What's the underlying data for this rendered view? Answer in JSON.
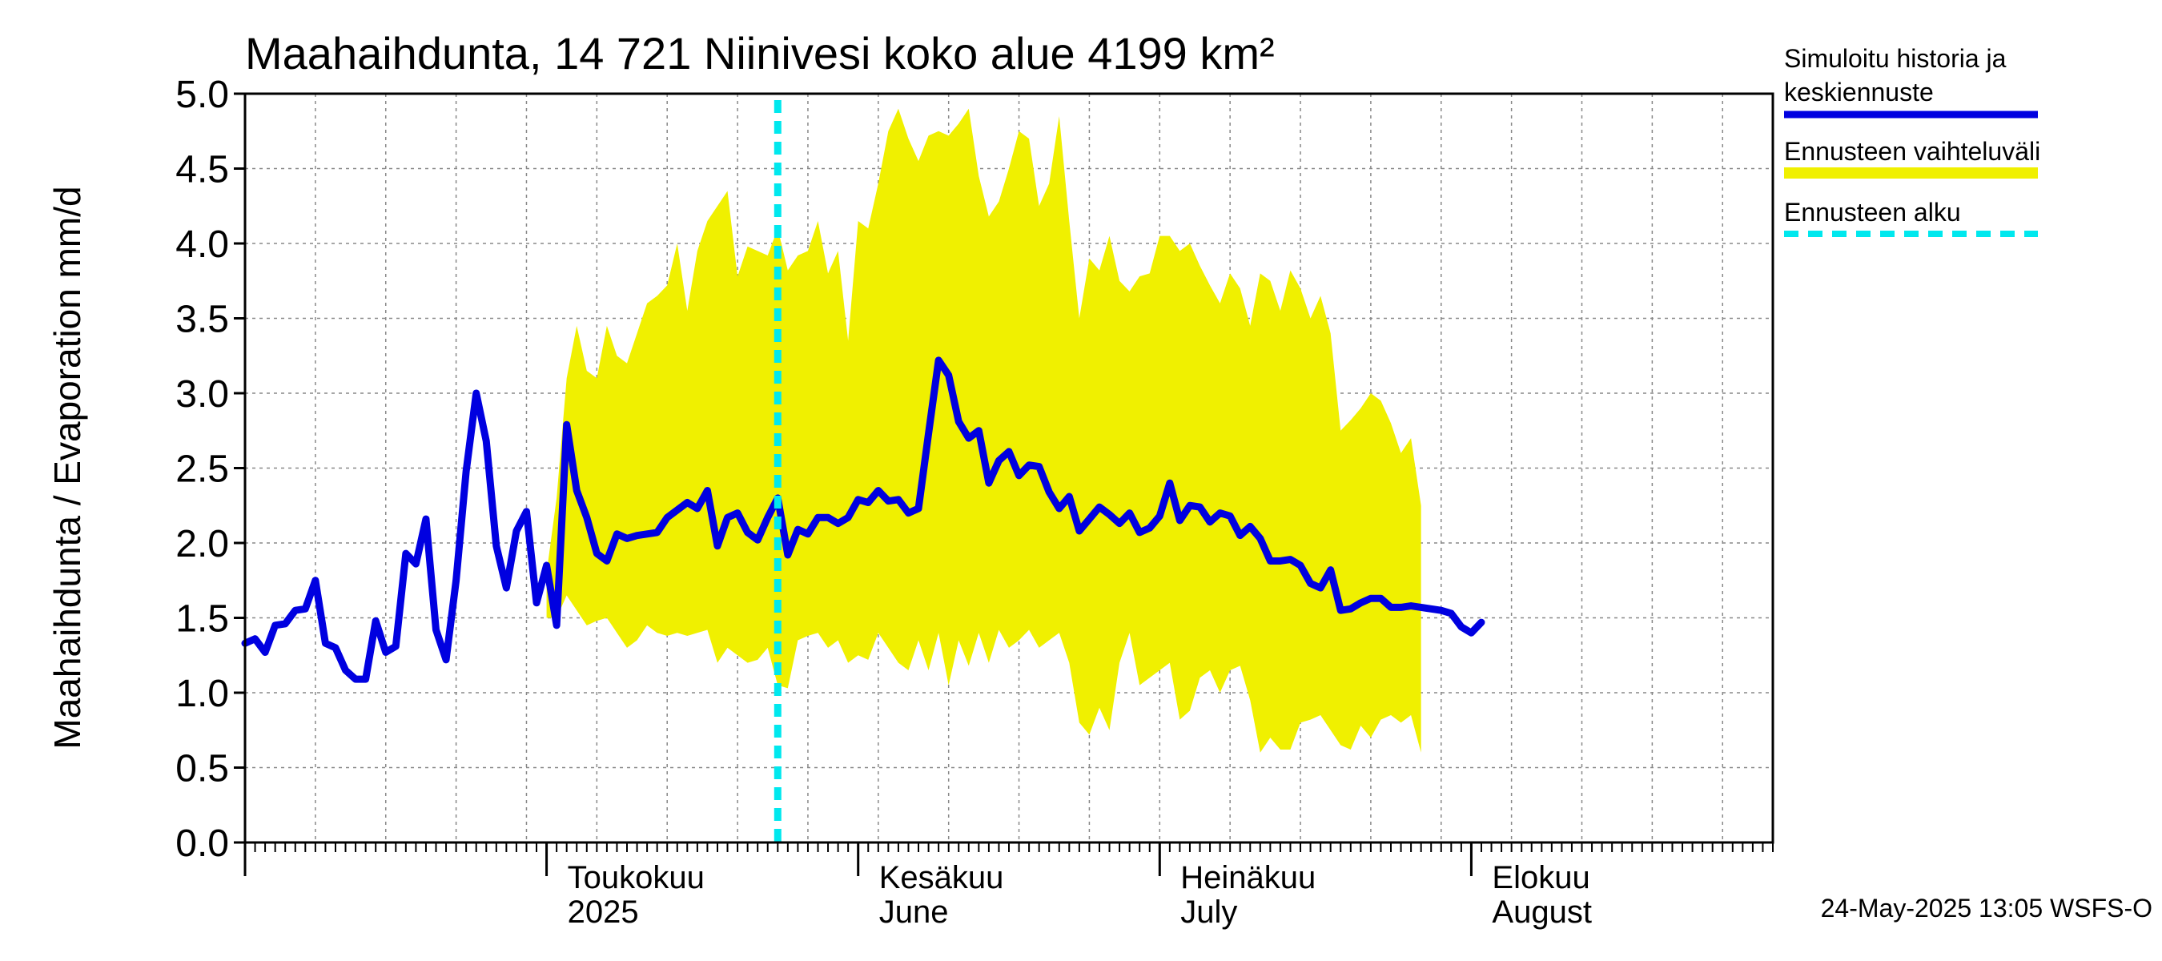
{
  "chart_data": {
    "type": "line",
    "title": "Maahaihdunta, 14 721 Niinivesi koko alue 4199 km²",
    "ylabel": "Maahaihdunta / Evaporation   mm/d",
    "ylim": [
      0,
      5
    ],
    "xlim": [
      "2025-04-01",
      "2025-08-31"
    ],
    "yticks": [
      "0.0",
      "0.5",
      "1.0",
      "1.5",
      "2.0",
      "2.5",
      "3.0",
      "3.5",
      "4.0",
      "4.5",
      "5.0"
    ],
    "month_labels": [
      {
        "line1": "Toukokuu",
        "line2": "2025"
      },
      {
        "line1": "Kesäkuu",
        "line2": "June"
      },
      {
        "line1": "Heinäkuu",
        "line2": "July"
      },
      {
        "line1": "Elokuu",
        "line2": "August"
      }
    ],
    "grid": true,
    "legend_position": "right",
    "forecast_start": "2025-05-24",
    "series": [
      {
        "name": "Simuloitu historia ja keskiennuste",
        "color": "#0000e0",
        "points": [
          [
            "2025-04-01",
            1.33
          ],
          [
            "2025-04-02",
            1.36
          ],
          [
            "2025-04-03",
            1.27
          ],
          [
            "2025-04-04",
            1.45
          ],
          [
            "2025-04-05",
            1.46
          ],
          [
            "2025-04-06",
            1.55
          ],
          [
            "2025-04-07",
            1.56
          ],
          [
            "2025-04-08",
            1.75
          ],
          [
            "2025-04-09",
            1.33
          ],
          [
            "2025-04-10",
            1.3
          ],
          [
            "2025-04-11",
            1.15
          ],
          [
            "2025-04-12",
            1.09
          ],
          [
            "2025-04-13",
            1.09
          ],
          [
            "2025-04-14",
            1.48
          ],
          [
            "2025-04-15",
            1.27
          ],
          [
            "2025-04-16",
            1.31
          ],
          [
            "2025-04-17",
            1.93
          ],
          [
            "2025-04-18",
            1.86
          ],
          [
            "2025-04-19",
            2.16
          ],
          [
            "2025-04-20",
            1.42
          ],
          [
            "2025-04-21",
            1.22
          ],
          [
            "2025-04-22",
            1.75
          ],
          [
            "2025-04-23",
            2.48
          ],
          [
            "2025-04-24",
            3.0
          ],
          [
            "2025-04-25",
            2.68
          ],
          [
            "2025-04-26",
            1.98
          ],
          [
            "2025-04-27",
            1.7
          ],
          [
            "2025-04-28",
            2.08
          ],
          [
            "2025-04-29",
            2.21
          ],
          [
            "2025-04-30",
            1.6
          ],
          [
            "2025-05-01",
            1.85
          ],
          [
            "2025-05-02",
            1.45
          ],
          [
            "2025-05-03",
            2.79
          ],
          [
            "2025-05-04",
            2.35
          ],
          [
            "2025-05-05",
            2.17
          ],
          [
            "2025-05-06",
            1.93
          ],
          [
            "2025-05-07",
            1.88
          ],
          [
            "2025-05-08",
            2.06
          ],
          [
            "2025-05-09",
            2.03
          ],
          [
            "2025-05-10",
            2.05
          ],
          [
            "2025-05-11",
            2.06
          ],
          [
            "2025-05-12",
            2.07
          ],
          [
            "2025-05-13",
            2.17
          ],
          [
            "2025-05-14",
            2.22
          ],
          [
            "2025-05-15",
            2.27
          ],
          [
            "2025-05-16",
            2.23
          ],
          [
            "2025-05-17",
            2.35
          ],
          [
            "2025-05-18",
            1.98
          ],
          [
            "2025-05-19",
            2.17
          ],
          [
            "2025-05-20",
            2.2
          ],
          [
            "2025-05-21",
            2.07
          ],
          [
            "2025-05-22",
            2.02
          ],
          [
            "2025-05-23",
            2.17
          ],
          [
            "2025-05-24",
            2.3
          ],
          [
            "2025-05-25",
            1.92
          ],
          [
            "2025-05-26",
            2.09
          ],
          [
            "2025-05-27",
            2.06
          ],
          [
            "2025-05-28",
            2.17
          ],
          [
            "2025-05-29",
            2.17
          ],
          [
            "2025-05-30",
            2.13
          ],
          [
            "2025-05-31",
            2.17
          ],
          [
            "2025-06-01",
            2.29
          ],
          [
            "2025-06-02",
            2.27
          ],
          [
            "2025-06-03",
            2.35
          ],
          [
            "2025-06-04",
            2.28
          ],
          [
            "2025-06-05",
            2.29
          ],
          [
            "2025-06-06",
            2.2
          ],
          [
            "2025-06-07",
            2.23
          ],
          [
            "2025-06-08",
            2.73
          ],
          [
            "2025-06-09",
            3.22
          ],
          [
            "2025-06-10",
            3.12
          ],
          [
            "2025-06-11",
            2.81
          ],
          [
            "2025-06-12",
            2.7
          ],
          [
            "2025-06-13",
            2.75
          ],
          [
            "2025-06-14",
            2.4
          ],
          [
            "2025-06-15",
            2.55
          ],
          [
            "2025-06-16",
            2.61
          ],
          [
            "2025-06-17",
            2.45
          ],
          [
            "2025-06-18",
            2.52
          ],
          [
            "2025-06-19",
            2.51
          ],
          [
            "2025-06-20",
            2.34
          ],
          [
            "2025-06-21",
            2.23
          ],
          [
            "2025-06-22",
            2.31
          ],
          [
            "2025-06-23",
            2.08
          ],
          [
            "2025-06-24",
            2.16
          ],
          [
            "2025-06-25",
            2.24
          ],
          [
            "2025-06-26",
            2.19
          ],
          [
            "2025-06-27",
            2.13
          ],
          [
            "2025-06-28",
            2.2
          ],
          [
            "2025-06-29",
            2.07
          ],
          [
            "2025-06-30",
            2.1
          ],
          [
            "2025-07-01",
            2.18
          ],
          [
            "2025-07-02",
            2.4
          ],
          [
            "2025-07-03",
            2.15
          ],
          [
            "2025-07-04",
            2.25
          ],
          [
            "2025-07-05",
            2.24
          ],
          [
            "2025-07-06",
            2.14
          ],
          [
            "2025-07-07",
            2.2
          ],
          [
            "2025-07-08",
            2.18
          ],
          [
            "2025-07-09",
            2.05
          ],
          [
            "2025-07-10",
            2.11
          ],
          [
            "2025-07-11",
            2.03
          ],
          [
            "2025-07-12",
            1.88
          ],
          [
            "2025-07-13",
            1.88
          ],
          [
            "2025-07-14",
            1.89
          ],
          [
            "2025-07-15",
            1.85
          ],
          [
            "2025-07-16",
            1.73
          ],
          [
            "2025-07-17",
            1.7
          ],
          [
            "2025-07-18",
            1.82
          ],
          [
            "2025-07-19",
            1.55
          ],
          [
            "2025-07-20",
            1.56
          ],
          [
            "2025-07-21",
            1.6
          ],
          [
            "2025-07-22",
            1.63
          ],
          [
            "2025-07-23",
            1.63
          ],
          [
            "2025-07-24",
            1.57
          ],
          [
            "2025-07-25",
            1.57
          ],
          [
            "2025-07-26",
            1.58
          ],
          [
            "2025-07-27",
            1.57
          ],
          [
            "2025-07-28",
            1.56
          ],
          [
            "2025-07-29",
            1.55
          ],
          [
            "2025-07-30",
            1.53
          ],
          [
            "2025-07-31",
            1.44
          ],
          [
            "2025-08-01",
            1.4
          ],
          [
            "2025-08-02",
            1.47
          ]
        ]
      },
      {
        "name": "Ennusteen vaihteluväli",
        "color": "#f0f000",
        "range": [
          [
            "2025-05-01",
            1.5,
            1.8
          ],
          [
            "2025-05-02",
            1.5,
            2.3
          ],
          [
            "2025-05-03",
            1.65,
            3.1
          ],
          [
            "2025-05-04",
            1.55,
            3.45
          ],
          [
            "2025-05-05",
            1.45,
            3.15
          ],
          [
            "2025-05-06",
            1.48,
            3.1
          ],
          [
            "2025-05-07",
            1.5,
            3.45
          ],
          [
            "2025-05-08",
            1.4,
            3.25
          ],
          [
            "2025-05-09",
            1.3,
            3.2
          ],
          [
            "2025-05-10",
            1.35,
            3.4
          ],
          [
            "2025-05-11",
            1.45,
            3.6
          ],
          [
            "2025-05-12",
            1.4,
            3.65
          ],
          [
            "2025-05-13",
            1.38,
            3.72
          ],
          [
            "2025-05-14",
            1.4,
            4.0
          ],
          [
            "2025-05-15",
            1.38,
            3.55
          ],
          [
            "2025-05-16",
            1.4,
            3.95
          ],
          [
            "2025-05-17",
            1.42,
            4.15
          ],
          [
            "2025-05-18",
            1.2,
            4.25
          ],
          [
            "2025-05-19",
            1.3,
            4.35
          ],
          [
            "2025-05-20",
            1.25,
            3.78
          ],
          [
            "2025-05-21",
            1.2,
            3.98
          ],
          [
            "2025-05-22",
            1.22,
            3.95
          ],
          [
            "2025-05-23",
            1.3,
            3.92
          ],
          [
            "2025-05-24",
            1.05,
            4.1
          ],
          [
            "2025-05-25",
            1.03,
            3.82
          ],
          [
            "2025-05-26",
            1.35,
            3.92
          ],
          [
            "2025-05-27",
            1.38,
            3.95
          ],
          [
            "2025-05-28",
            1.4,
            4.15
          ],
          [
            "2025-05-29",
            1.3,
            3.8
          ],
          [
            "2025-05-30",
            1.35,
            3.95
          ],
          [
            "2025-05-31",
            1.2,
            3.35
          ],
          [
            "2025-06-01",
            1.25,
            4.15
          ],
          [
            "2025-06-02",
            1.22,
            4.1
          ],
          [
            "2025-06-03",
            1.4,
            4.4
          ],
          [
            "2025-06-04",
            1.3,
            4.75
          ],
          [
            "2025-06-05",
            1.2,
            4.9
          ],
          [
            "2025-06-06",
            1.15,
            4.7
          ],
          [
            "2025-06-07",
            1.35,
            4.55
          ],
          [
            "2025-06-08",
            1.15,
            4.72
          ],
          [
            "2025-06-09",
            1.4,
            4.75
          ],
          [
            "2025-06-10",
            1.05,
            4.72
          ],
          [
            "2025-06-11",
            1.35,
            4.8
          ],
          [
            "2025-06-12",
            1.18,
            4.9
          ],
          [
            "2025-06-13",
            1.4,
            4.45
          ],
          [
            "2025-06-14",
            1.2,
            4.18
          ],
          [
            "2025-06-15",
            1.42,
            4.28
          ],
          [
            "2025-06-16",
            1.3,
            4.5
          ],
          [
            "2025-06-17",
            1.35,
            4.75
          ],
          [
            "2025-06-18",
            1.42,
            4.7
          ],
          [
            "2025-06-19",
            1.3,
            4.25
          ],
          [
            "2025-06-20",
            1.35,
            4.4
          ],
          [
            "2025-06-21",
            1.4,
            4.85
          ],
          [
            "2025-06-22",
            1.2,
            4.15
          ],
          [
            "2025-06-23",
            0.8,
            3.5
          ],
          [
            "2025-06-24",
            0.72,
            3.9
          ],
          [
            "2025-06-25",
            0.9,
            3.82
          ],
          [
            "2025-06-26",
            0.75,
            4.05
          ],
          [
            "2025-06-27",
            1.2,
            3.75
          ],
          [
            "2025-06-28",
            1.4,
            3.68
          ],
          [
            "2025-06-29",
            1.05,
            3.78
          ],
          [
            "2025-06-30",
            1.1,
            3.8
          ],
          [
            "2025-07-01",
            1.15,
            4.05
          ],
          [
            "2025-07-02",
            1.2,
            4.05
          ],
          [
            "2025-07-03",
            0.82,
            3.95
          ],
          [
            "2025-07-04",
            0.88,
            4.0
          ],
          [
            "2025-07-05",
            1.1,
            3.85
          ],
          [
            "2025-07-06",
            1.15,
            3.72
          ],
          [
            "2025-07-07",
            1.0,
            3.6
          ],
          [
            "2025-07-08",
            1.15,
            3.8
          ],
          [
            "2025-07-09",
            1.18,
            3.7
          ],
          [
            "2025-07-10",
            0.95,
            3.45
          ],
          [
            "2025-07-11",
            0.6,
            3.8
          ],
          [
            "2025-07-12",
            0.7,
            3.75
          ],
          [
            "2025-07-13",
            0.62,
            3.55
          ],
          [
            "2025-07-14",
            0.62,
            3.82
          ],
          [
            "2025-07-15",
            0.8,
            3.7
          ],
          [
            "2025-07-16",
            0.82,
            3.5
          ],
          [
            "2025-07-17",
            0.85,
            3.65
          ],
          [
            "2025-07-18",
            0.75,
            3.4
          ],
          [
            "2025-07-19",
            0.65,
            2.75
          ],
          [
            "2025-07-20",
            0.62,
            2.82
          ],
          [
            "2025-07-21",
            0.78,
            2.9
          ],
          [
            "2025-07-22",
            0.7,
            3.0
          ],
          [
            "2025-07-23",
            0.82,
            2.95
          ],
          [
            "2025-07-24",
            0.85,
            2.8
          ],
          [
            "2025-07-25",
            0.8,
            2.6
          ],
          [
            "2025-07-26",
            0.85,
            2.7
          ],
          [
            "2025-07-27",
            0.6,
            2.25
          ]
        ]
      },
      {
        "name": "Ennusteen alku",
        "color": "#00e8ee",
        "style": "dashed-vertical"
      }
    ]
  },
  "footer": "24-May-2025 13:05 WSFS-O"
}
